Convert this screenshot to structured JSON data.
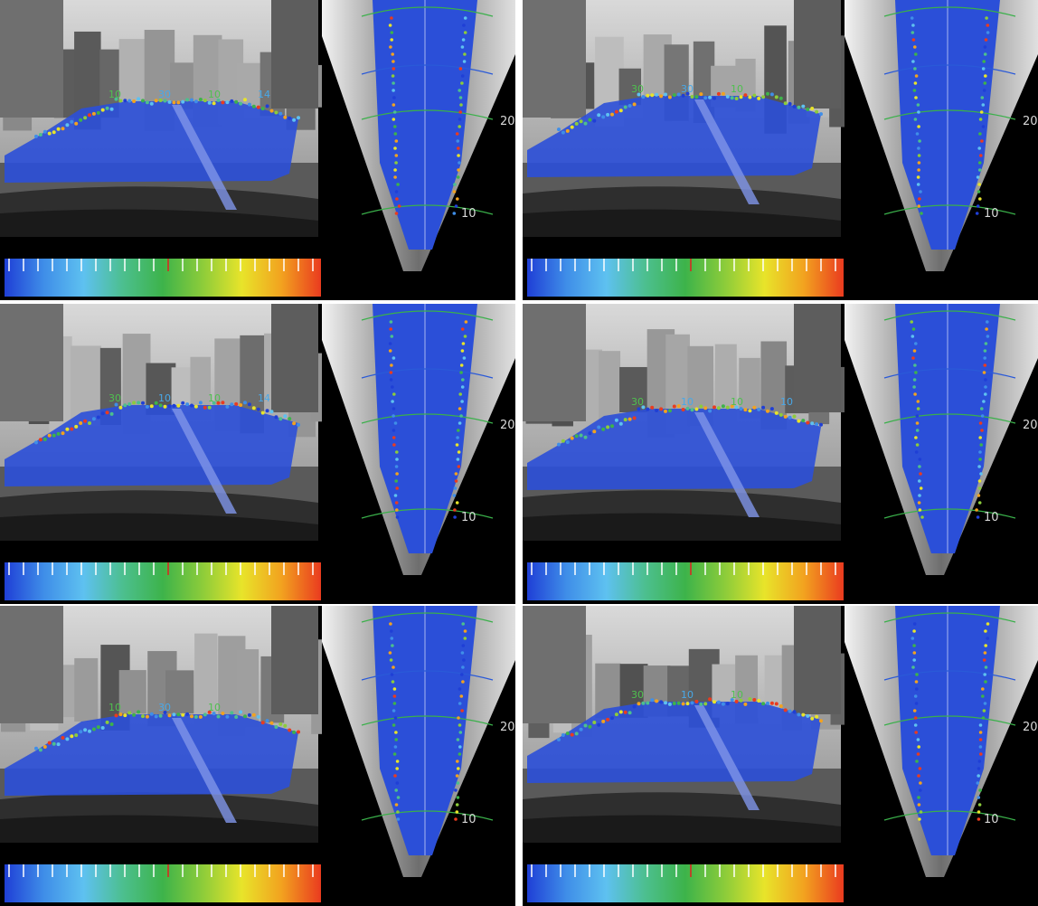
{
  "colorbar_colors": [
    "#1f3fd6",
    "#3f8ee8",
    "#5ec1f0",
    "#4cbf8e",
    "#3db34a",
    "#8ccc3a",
    "#e8e42a",
    "#f2a21f",
    "#ea3b1f"
  ],
  "road_color": "#2b4fd8",
  "grid_colors": {
    "near": "#3ab04a",
    "mid": "#2a5ad8",
    "far": "#3ab04a"
  },
  "panels": [
    {
      "id": "p1",
      "front_labels": [
        "10",
        "30",
        "10",
        "14"
      ],
      "top_ticks": [
        "20",
        "10"
      ]
    },
    {
      "id": "p2",
      "front_labels": [
        "30",
        "30",
        "10"
      ],
      "top_ticks": [
        "20",
        "10"
      ]
    },
    {
      "id": "p3",
      "front_labels": [
        "30",
        "10",
        "10",
        "14"
      ],
      "top_ticks": [
        "20",
        "10"
      ]
    },
    {
      "id": "p4",
      "front_labels": [
        "30",
        "10",
        "10",
        "10"
      ],
      "top_ticks": [
        "20",
        "10"
      ]
    },
    {
      "id": "p5",
      "front_labels": [
        "10",
        "30",
        "10"
      ],
      "top_ticks": [
        "20",
        "10"
      ]
    },
    {
      "id": "p6",
      "front_labels": [
        "30",
        "10",
        "10"
      ],
      "top_ticks": [
        "20",
        "10"
      ]
    }
  ]
}
